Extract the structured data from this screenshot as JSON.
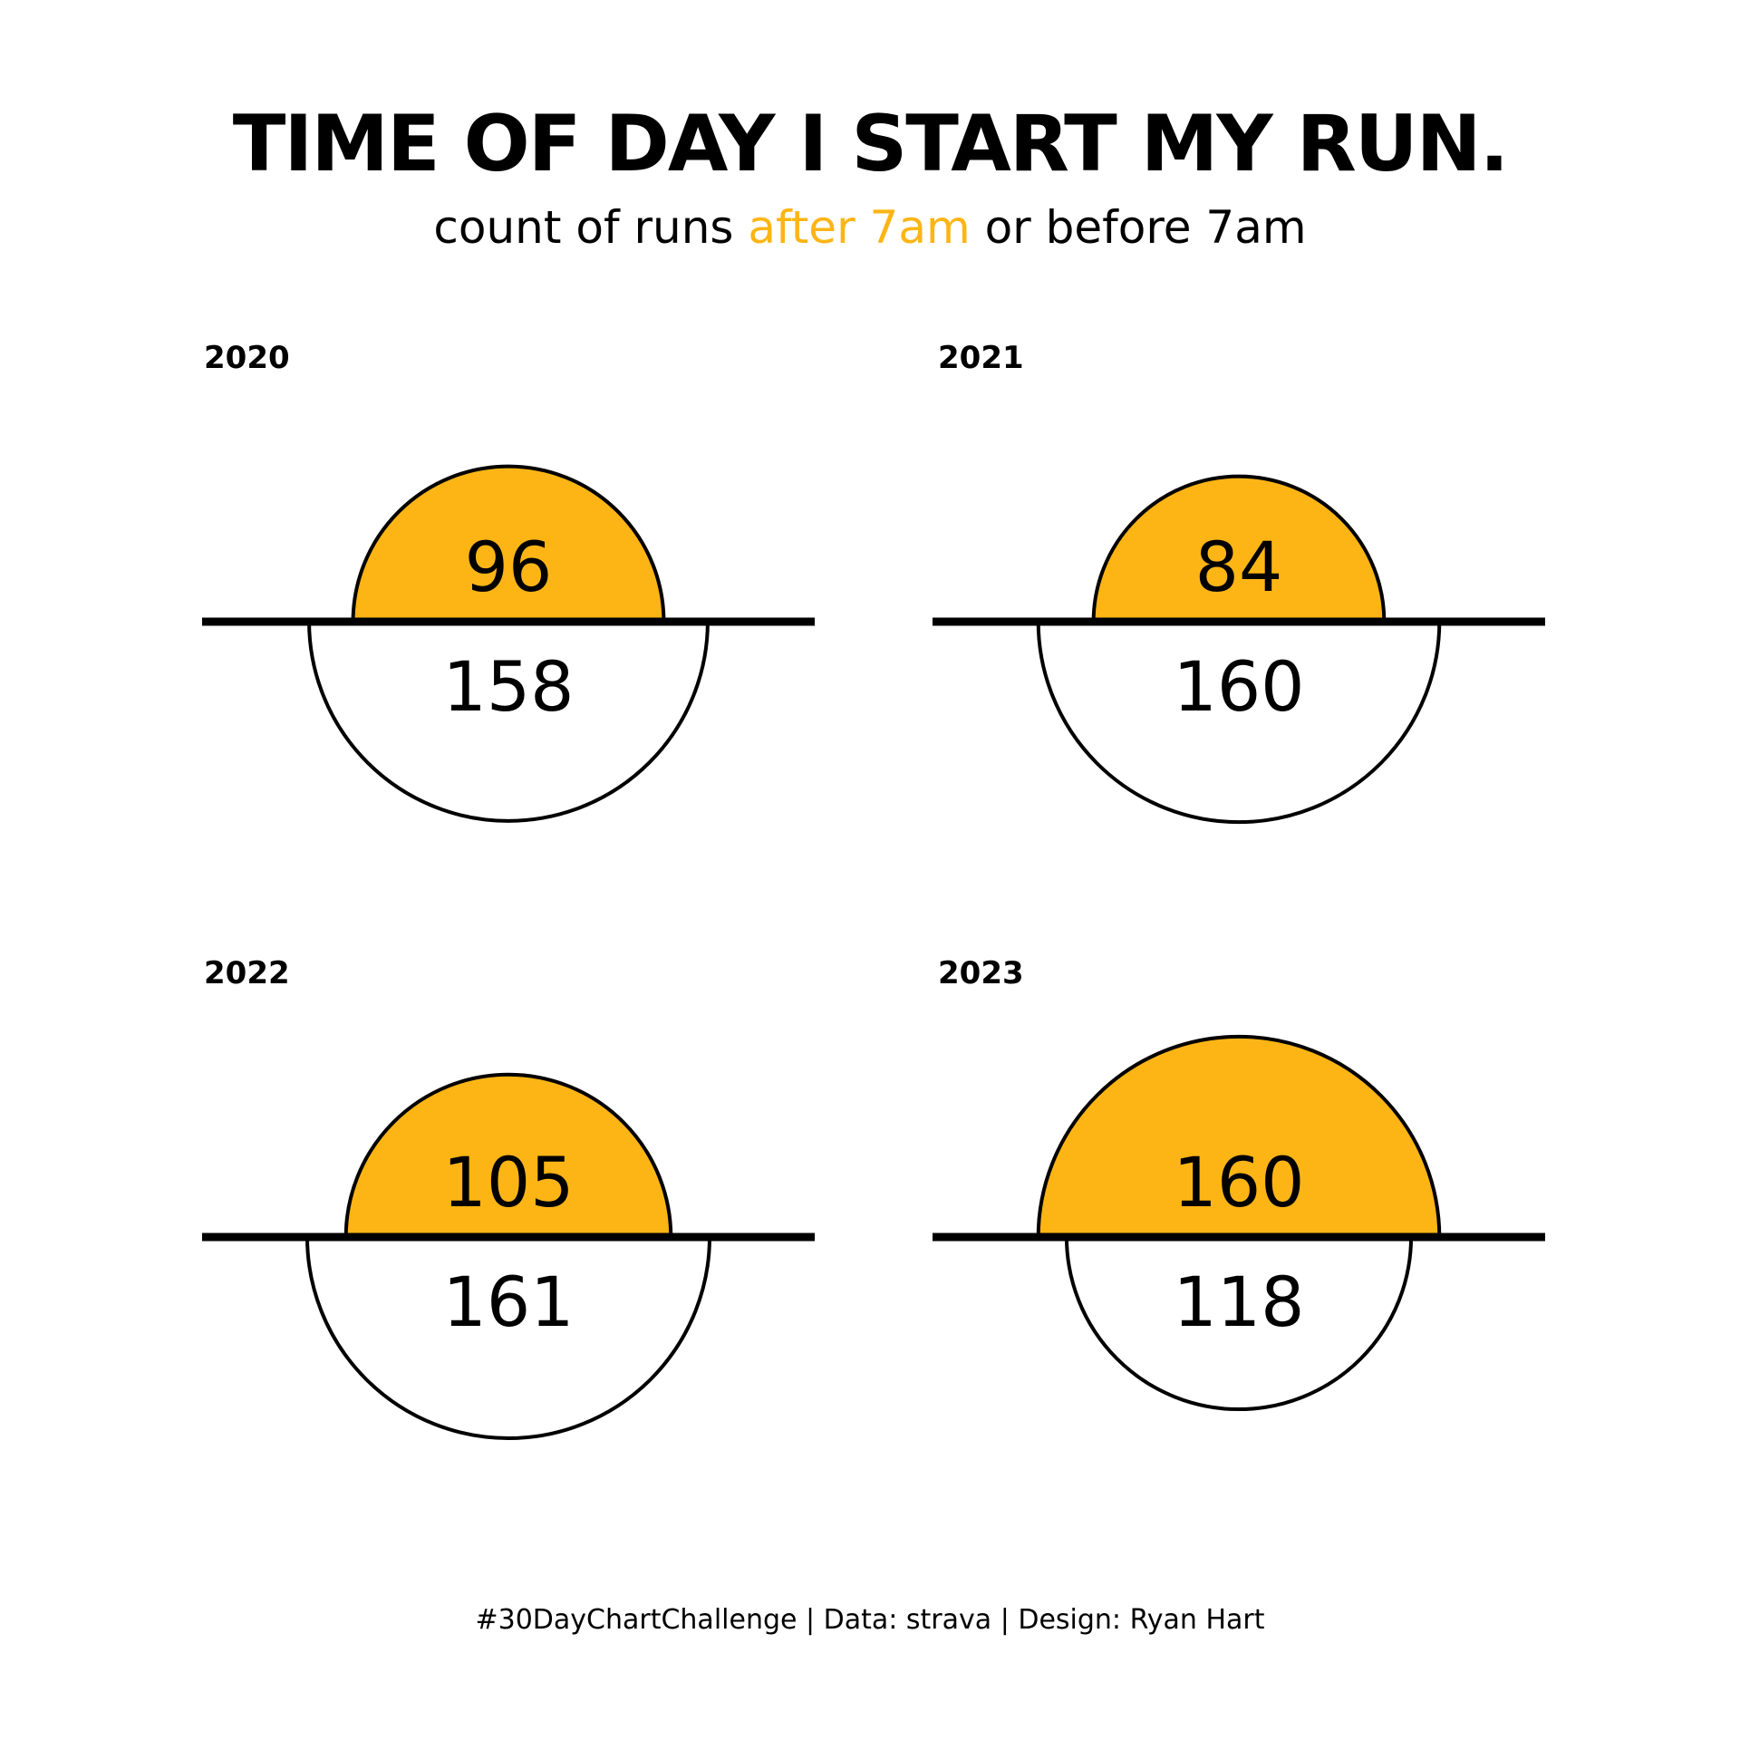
{
  "chart_data": {
    "type": "semicircle-comparison",
    "title": "TIME OF DAY I START MY RUN.",
    "subtitle": {
      "before": "count of runs ",
      "highlight": "after 7am",
      "after": " or before 7am"
    },
    "caption": "#30DayChartChallenge | Data: strava | Design: Ryan Hart",
    "categories": [
      "2020",
      "2021",
      "2022",
      "2023"
    ],
    "series": [
      {
        "name": "after 7am",
        "color": "#FDB515",
        "values": [
          96,
          84,
          105,
          160
        ]
      },
      {
        "name": "before 7am",
        "color": "#FFFFFF",
        "values": [
          158,
          160,
          161,
          118
        ]
      }
    ],
    "colors": {
      "highlight": "#FDB515",
      "outline": "#000000",
      "background": "#FFFFFF"
    }
  }
}
